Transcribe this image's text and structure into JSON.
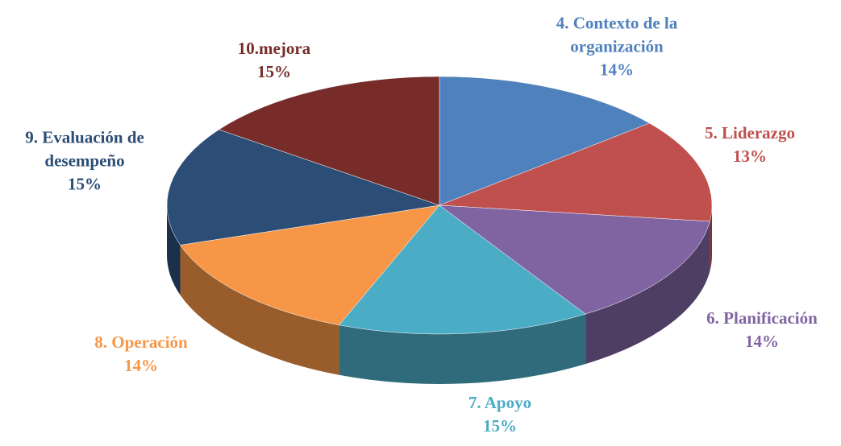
{
  "chart_data": {
    "type": "pie",
    "categories": [
      "4. Contexto de la organización",
      "5. Liderazgo",
      "6. Planificación",
      "7. Apoyo",
      "8. Operación",
      "9. Evaluación de desempeño",
      "10.mejora"
    ],
    "values": [
      14,
      13,
      14,
      15,
      14,
      15,
      15
    ],
    "value_labels": [
      "14%",
      "13%",
      "14%",
      "15%",
      "14%",
      "15%",
      "15%"
    ],
    "colors": [
      "#4f81bd",
      "#c0504d",
      "#8064a2",
      "#4bacc6",
      "#f79646",
      "#2c4d75",
      "#772c2a"
    ]
  }
}
